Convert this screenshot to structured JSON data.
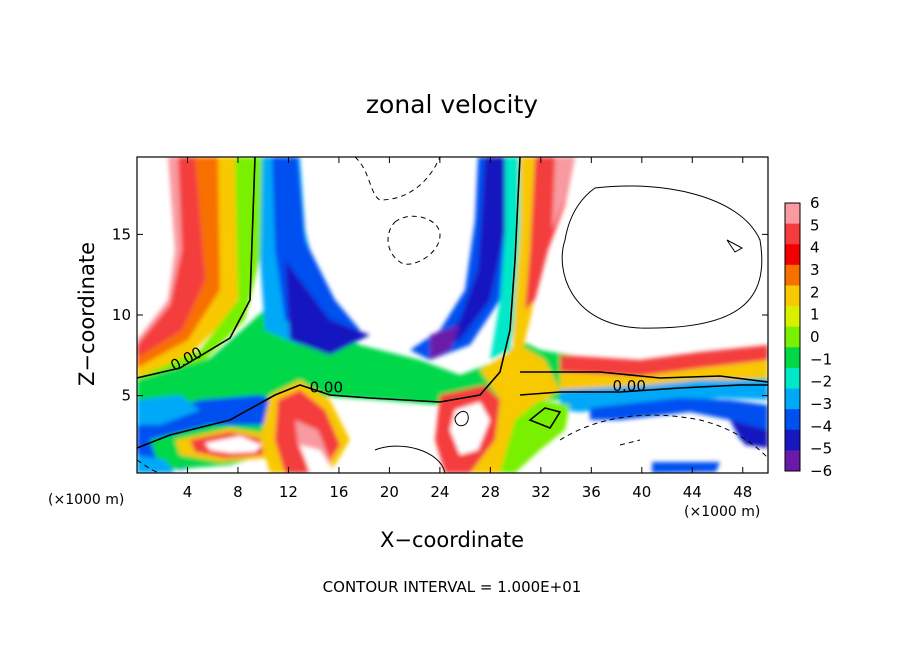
{
  "chart_data": {
    "type": "heatmap",
    "title": "zonal velocity",
    "xlabel": "X−coordinate",
    "ylabel": "Z−coordinate",
    "x_unit_label": "(×1000 m)",
    "x_unit_label_right": "(×1000 m)",
    "footer": "CONTOUR INTERVAL = 1.000E+01",
    "xlim": [
      0,
      50
    ],
    "ylim": [
      0.2,
      19.8
    ],
    "x_ticks": [
      4,
      8,
      12,
      16,
      20,
      24,
      28,
      32,
      36,
      40,
      44,
      48
    ],
    "x_tick_labels": [
      "4",
      "8",
      "12",
      "16",
      "20",
      "24",
      "28",
      "32",
      "36",
      "40",
      "44",
      "48"
    ],
    "y_ticks": [
      5,
      10,
      15
    ],
    "y_tick_labels": [
      "5",
      "10",
      "15"
    ],
    "colorbar": {
      "levels": [
        6,
        5,
        4,
        3,
        2,
        1,
        0,
        -1,
        -2,
        -3,
        -4,
        -5,
        -6
      ],
      "labels": [
        "6",
        "5",
        "4",
        "3",
        "2",
        "1",
        "0",
        "−1",
        "−2",
        "−3",
        "−4",
        "−5",
        "−6"
      ],
      "colors": [
        "#f89aa0",
        "#f43c3c",
        "#f00000",
        "#f87000",
        "#f8c800",
        "#d8f000",
        "#78f000",
        "#00d848",
        "#00e8c8",
        "#00a8f8",
        "#0050f0",
        "#1818c0",
        "#6a1aa8"
      ]
    },
    "contour_labels": [
      {
        "text": "0.00",
        "x": 4.1,
        "y": 7.0,
        "rotate": -28
      },
      {
        "text": "0.00",
        "x": 15.0,
        "y": 5.2,
        "rotate": 0
      },
      {
        "text": "0.00",
        "x": 39.0,
        "y": 5.3,
        "rotate": 0
      }
    ]
  }
}
